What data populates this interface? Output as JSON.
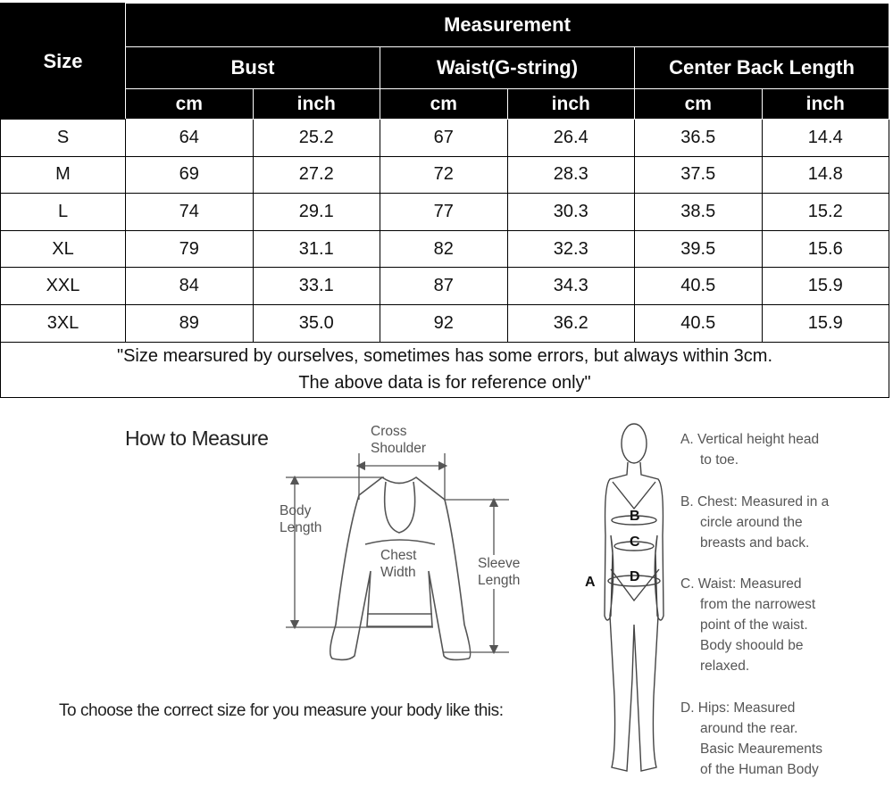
{
  "table": {
    "size_header": "Size",
    "measurement_header": "Measurement",
    "groups": [
      "Bust",
      "Waist(G-string)",
      "Center Back Length"
    ],
    "units": [
      "cm",
      "inch",
      "cm",
      "inch",
      "cm",
      "inch"
    ],
    "rows": [
      [
        "S",
        "64",
        "25.2",
        "67",
        "26.4",
        "36.5",
        "14.4"
      ],
      [
        "M",
        "69",
        "27.2",
        "72",
        "28.3",
        "37.5",
        "14.8"
      ],
      [
        "L",
        "74",
        "29.1",
        "77",
        "30.3",
        "38.5",
        "15.2"
      ],
      [
        "XL",
        "79",
        "31.1",
        "82",
        "32.3",
        "39.5",
        "15.6"
      ],
      [
        "XXL",
        "84",
        "33.1",
        "87",
        "34.3",
        "40.5",
        "15.9"
      ],
      [
        "3XL",
        "89",
        "35.0",
        "92",
        "36.2",
        "40.5",
        "15.9"
      ]
    ],
    "note_lines": [
      "\"Size mearsured by ourselves, sometimes has some errors, but always within 3cm.",
      "The above data is for reference only\""
    ]
  },
  "how_to": {
    "title": "How to Measure",
    "cross_shoulder": [
      "Cross",
      "Shoulder"
    ],
    "body_length": [
      "Body",
      "Length"
    ],
    "chest_width": [
      "Chest",
      "Width"
    ],
    "sleeve_length": [
      "Sleeve",
      "Length"
    ],
    "instruction": "To choose the correct size for you measure your body like this:"
  },
  "body_figure": {
    "letters": {
      "a": "A",
      "b": "B",
      "c": "C",
      "d": "D"
    },
    "legend": [
      [
        "A. Vertical height head",
        "to toe."
      ],
      [
        "B. Chest: Measured in a",
        "circle around the",
        "breasts and back."
      ],
      [
        "C. Waist: Measured",
        "from the narrowest",
        "point of the waist.",
        "Body shoould be",
        "relaxed."
      ],
      [
        "D. Hips: Measured",
        "around the rear.",
        "Basic Meaurements",
        "of the Human Body"
      ]
    ]
  }
}
